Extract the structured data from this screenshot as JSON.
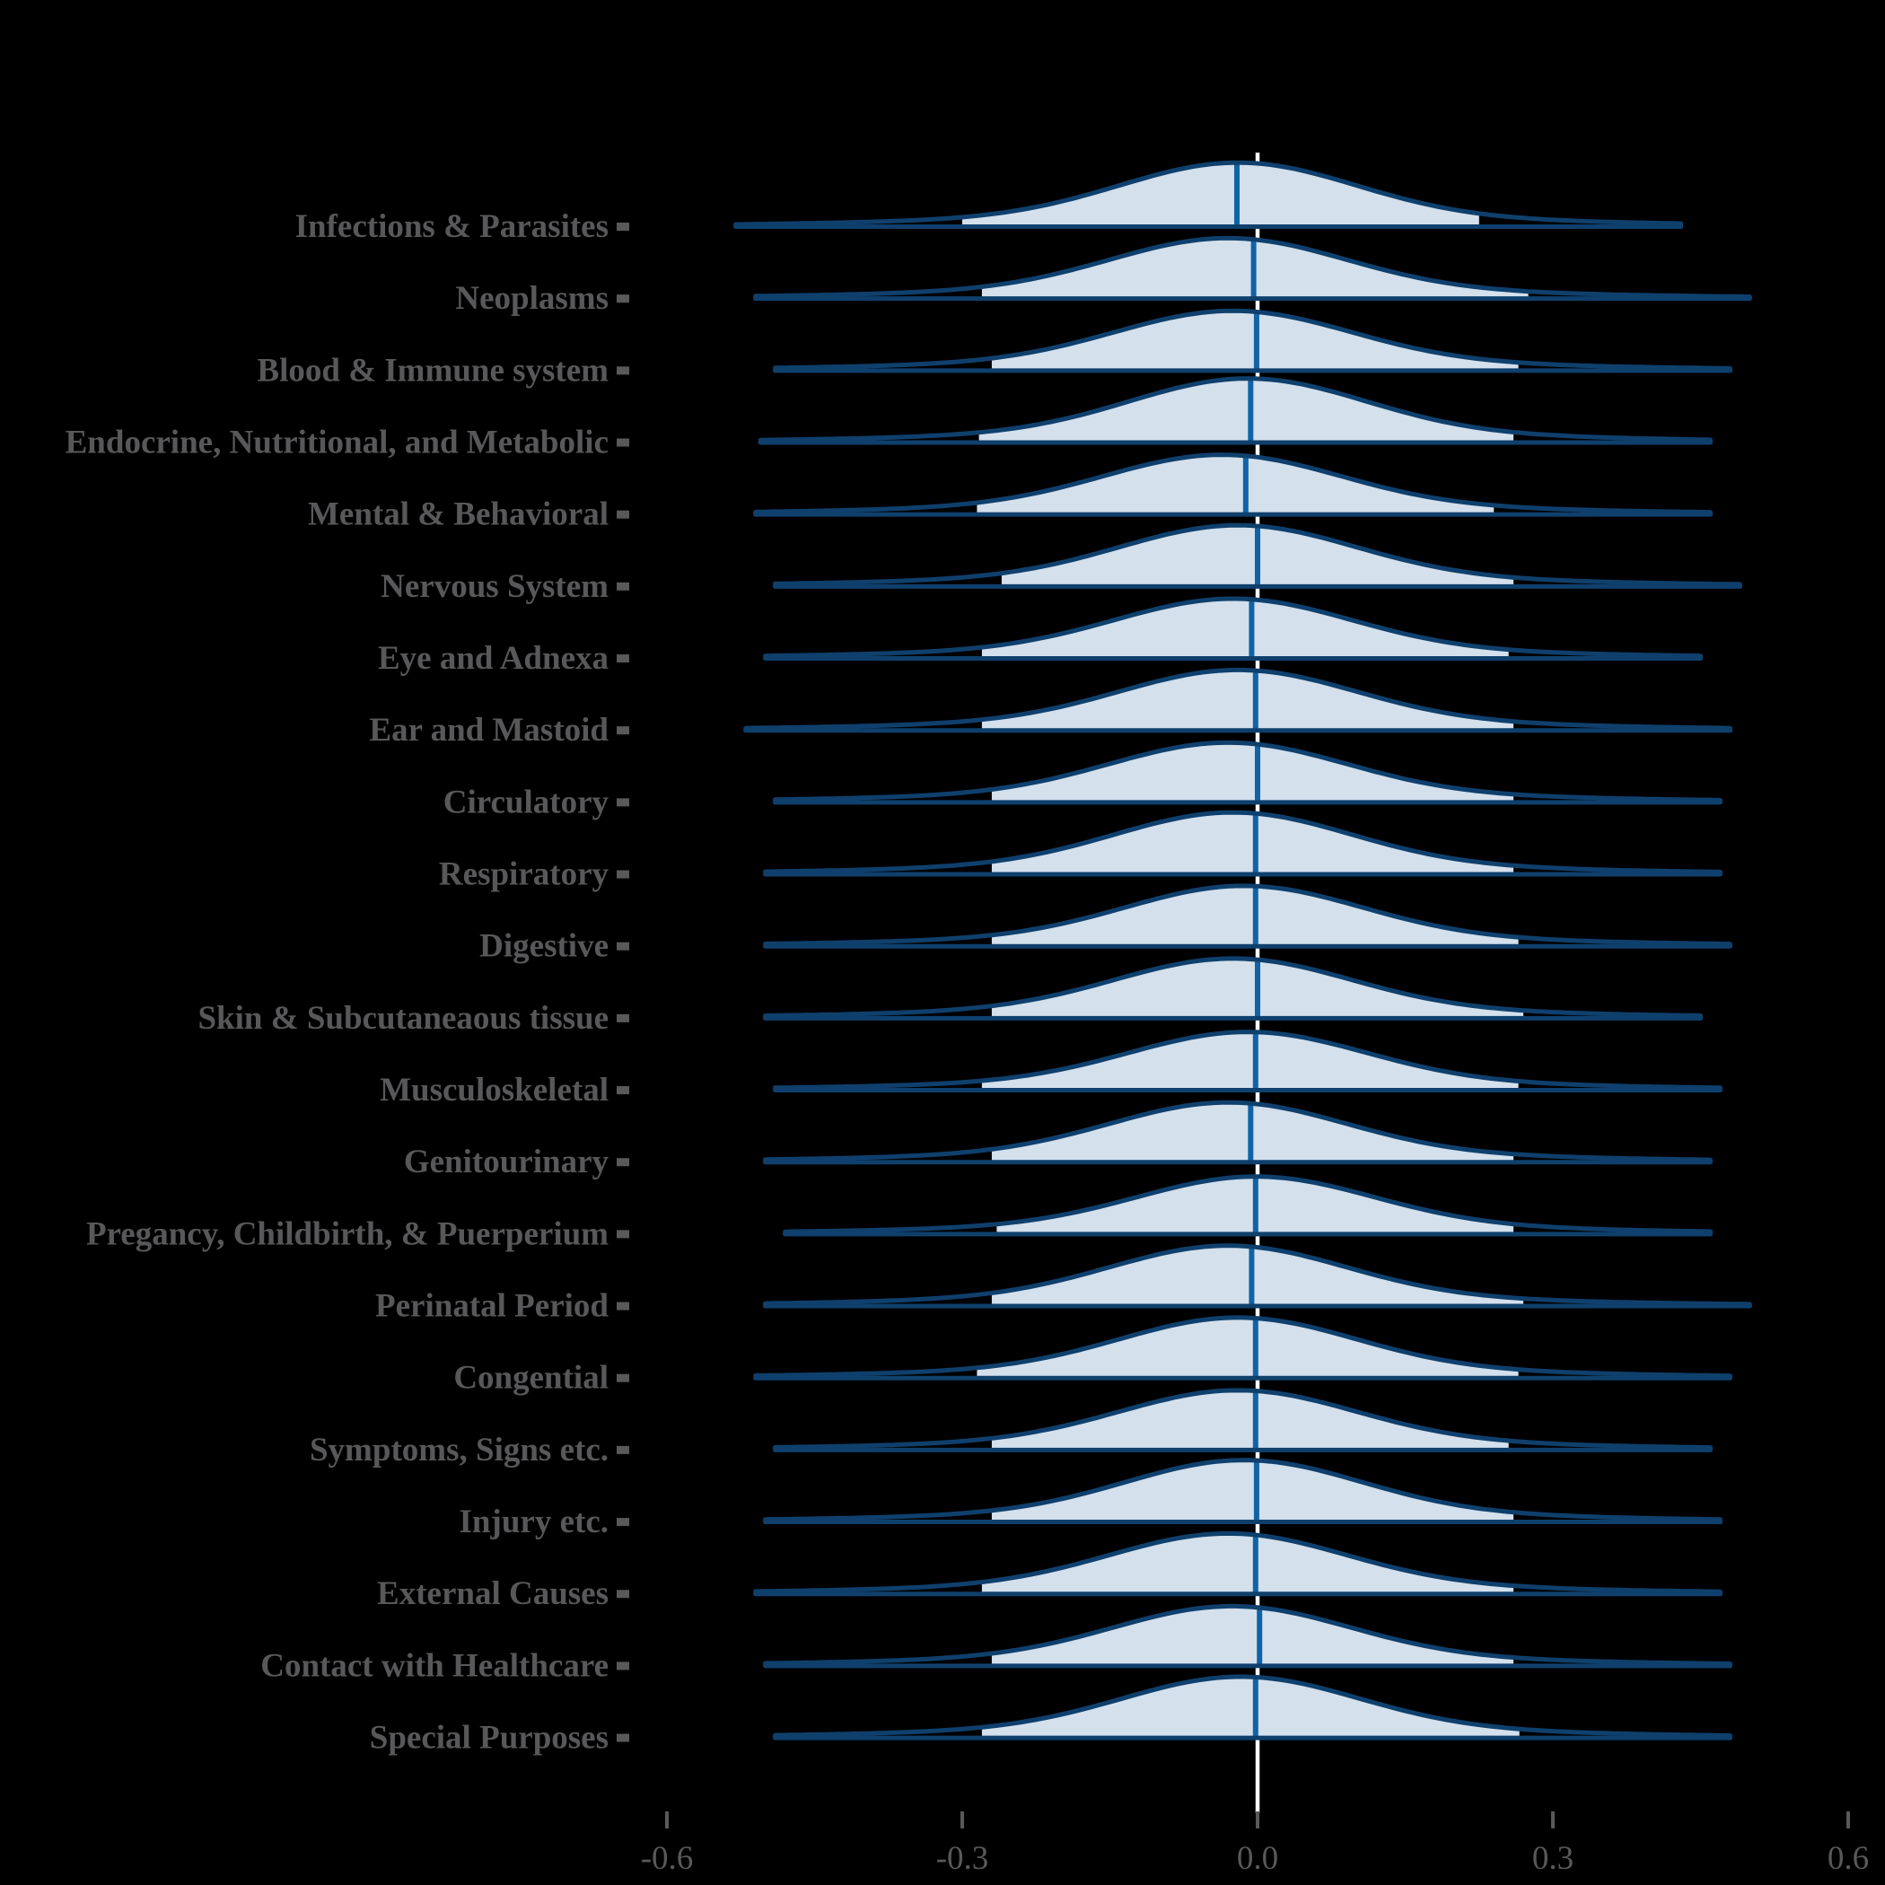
{
  "chart_data": {
    "type": "ridgeline",
    "title": "",
    "xlabel": "",
    "ylabel": "",
    "x_tick_values": [
      -0.6,
      -0.3,
      0.0,
      0.3,
      0.6
    ],
    "x_tick_labels": [
      "-0.6",
      "-0.3",
      "0.0",
      "0.3",
      "0.6"
    ],
    "xlim": [
      -0.63,
      0.64
    ],
    "zero_reference_line": 0.0,
    "legend": "none",
    "grid": "off",
    "colors": {
      "background": "#000000",
      "ridge_fill": "#d4e0ec",
      "ridge_outline": "#0f406d",
      "median_line": "#1063a6",
      "zero_line": "#ffffff",
      "axis_text": "#595959",
      "y_label_text": "#58585a",
      "tick_mark": "#595959"
    },
    "rows": [
      {
        "label": "Infections & Parasites",
        "mode": -0.02,
        "median": -0.021,
        "fill_left": -0.3,
        "fill_right": 0.225,
        "tail_left": -0.53,
        "tail_right": 0.43,
        "peak": 0.89
      },
      {
        "label": "Neoplasms",
        "mode": -0.03,
        "median": -0.004,
        "fill_left": -0.28,
        "fill_right": 0.275,
        "tail_left": -0.51,
        "tail_right": 0.5,
        "peak": 0.84
      },
      {
        "label": "Blood & Immune system",
        "mode": -0.025,
        "median": -0.001,
        "fill_left": -0.27,
        "fill_right": 0.265,
        "tail_left": -0.49,
        "tail_right": 0.48,
        "peak": 0.83
      },
      {
        "label": "Endocrine, Nutritional, and Metabolic",
        "mode": -0.01,
        "median": -0.007,
        "fill_left": -0.283,
        "fill_right": 0.26,
        "tail_left": -0.505,
        "tail_right": 0.46,
        "peak": 0.89
      },
      {
        "label": "Mental & Behavioral",
        "mode": -0.036,
        "median": -0.012,
        "fill_left": -0.285,
        "fill_right": 0.24,
        "tail_left": -0.51,
        "tail_right": 0.46,
        "peak": 0.83
      },
      {
        "label": "Nervous System",
        "mode": -0.02,
        "median": 0.0,
        "fill_left": -0.26,
        "fill_right": 0.26,
        "tail_left": -0.49,
        "tail_right": 0.49,
        "peak": 0.85
      },
      {
        "label": "Eye and Adnexa",
        "mode": -0.025,
        "median": -0.006,
        "fill_left": -0.28,
        "fill_right": 0.255,
        "tail_left": -0.5,
        "tail_right": 0.45,
        "peak": 0.83
      },
      {
        "label": "Ear and Mastoid",
        "mode": -0.02,
        "median": -0.002,
        "fill_left": -0.28,
        "fill_right": 0.26,
        "tail_left": -0.52,
        "tail_right": 0.48,
        "peak": 0.84
      },
      {
        "label": "Circulatory",
        "mode": -0.03,
        "median": 0.0,
        "fill_left": -0.27,
        "fill_right": 0.26,
        "tail_left": -0.49,
        "tail_right": 0.47,
        "peak": 0.83
      },
      {
        "label": "Respiratory",
        "mode": -0.025,
        "median": -0.002,
        "fill_left": -0.27,
        "fill_right": 0.26,
        "tail_left": -0.5,
        "tail_right": 0.47,
        "peak": 0.86
      },
      {
        "label": "Digestive",
        "mode": -0.014,
        "median": -0.002,
        "fill_left": -0.27,
        "fill_right": 0.265,
        "tail_left": -0.5,
        "tail_right": 0.48,
        "peak": 0.84
      },
      {
        "label": "Skin & Subcutaneaous tissue",
        "mode": -0.025,
        "median": 0.0,
        "fill_left": -0.27,
        "fill_right": 0.27,
        "tail_left": -0.5,
        "tail_right": 0.45,
        "peak": 0.83
      },
      {
        "label": "Musculoskeletal",
        "mode": -0.01,
        "median": -0.002,
        "fill_left": -0.28,
        "fill_right": 0.265,
        "tail_left": -0.49,
        "tail_right": 0.47,
        "peak": 0.81
      },
      {
        "label": "Genitourinary",
        "mode": -0.03,
        "median": -0.007,
        "fill_left": -0.27,
        "fill_right": 0.26,
        "tail_left": -0.5,
        "tail_right": 0.46,
        "peak": 0.83
      },
      {
        "label": "Pregancy, Childbirth, & Puerperium",
        "mode": -0.002,
        "median": -0.002,
        "fill_left": -0.265,
        "fill_right": 0.26,
        "tail_left": -0.48,
        "tail_right": 0.46,
        "peak": 0.8
      },
      {
        "label": "Perinatal Period",
        "mode": -0.03,
        "median": -0.006,
        "fill_left": -0.27,
        "fill_right": 0.27,
        "tail_left": -0.5,
        "tail_right": 0.5,
        "peak": 0.84
      },
      {
        "label": "Congential",
        "mode": -0.02,
        "median": -0.002,
        "fill_left": -0.285,
        "fill_right": 0.265,
        "tail_left": -0.51,
        "tail_right": 0.48,
        "peak": 0.84
      },
      {
        "label": "Symptoms, Signs etc.",
        "mode": -0.02,
        "median": -0.002,
        "fill_left": -0.27,
        "fill_right": 0.255,
        "tail_left": -0.49,
        "tail_right": 0.46,
        "peak": 0.83
      },
      {
        "label": "Injury etc.",
        "mode": -0.014,
        "median": -0.001,
        "fill_left": -0.27,
        "fill_right": 0.26,
        "tail_left": -0.5,
        "tail_right": 0.47,
        "peak": 0.86
      },
      {
        "label": "External Causes",
        "mode": -0.03,
        "median": -0.002,
        "fill_left": -0.28,
        "fill_right": 0.26,
        "tail_left": -0.51,
        "tail_right": 0.47,
        "peak": 0.84
      },
      {
        "label": "Contact with Healthcare",
        "mode": -0.026,
        "median": 0.002,
        "fill_left": -0.27,
        "fill_right": 0.26,
        "tail_left": -0.5,
        "tail_right": 0.48,
        "peak": 0.83
      },
      {
        "label": "Special Purposes",
        "mode": -0.017,
        "median": -0.002,
        "fill_left": -0.28,
        "fill_right": 0.266,
        "tail_left": -0.49,
        "tail_right": 0.48,
        "peak": 0.85
      }
    ]
  }
}
